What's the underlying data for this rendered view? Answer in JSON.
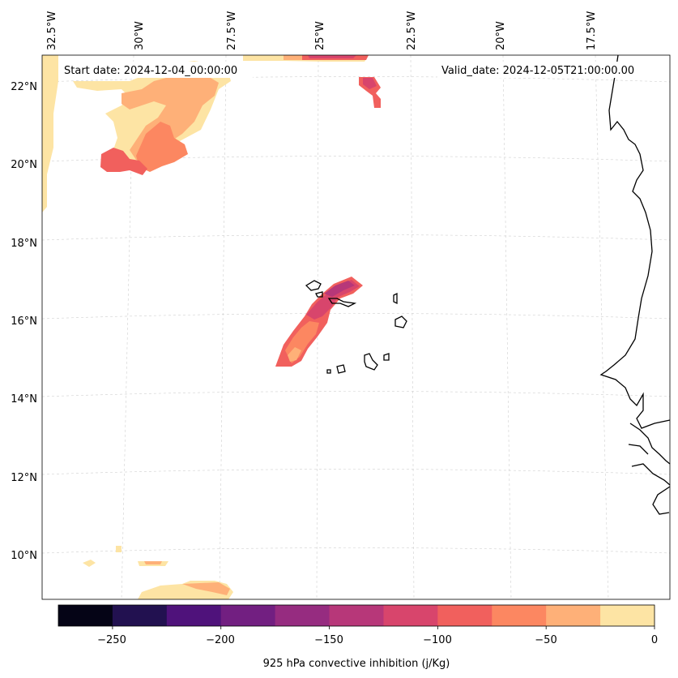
{
  "map": {
    "start_date": "Start date: 2024-12-04_00:00:00",
    "valid_date": "Valid_date: 2024-12-05T21:00:00.00",
    "lon_labels": [
      "32.5°W",
      "30°W",
      "27.5°W",
      "25°W",
      "22.5°W",
      "20°W",
      "17.5°W"
    ],
    "lat_labels": [
      "22°N",
      "20°N",
      "18°N",
      "16°N",
      "14°N",
      "12°N",
      "10°N"
    ],
    "colorbar": {
      "title": "925 hPa convective inhibition (j/Kg)",
      "tick_labels": [
        "−250",
        "−200",
        "−150",
        "−100",
        "−50",
        "0"
      ],
      "levels": [
        -275,
        -250,
        -225,
        -200,
        -175,
        -150,
        -125,
        -100,
        -75,
        -50,
        -25,
        0
      ],
      "colors": [
        "#050416",
        "#221150",
        "#4f127b",
        "#721f81",
        "#962c80",
        "#b73779",
        "#d8456c",
        "#f1605d",
        "#fc8761",
        "#feb078",
        "#fde4a4"
      ]
    }
  }
}
